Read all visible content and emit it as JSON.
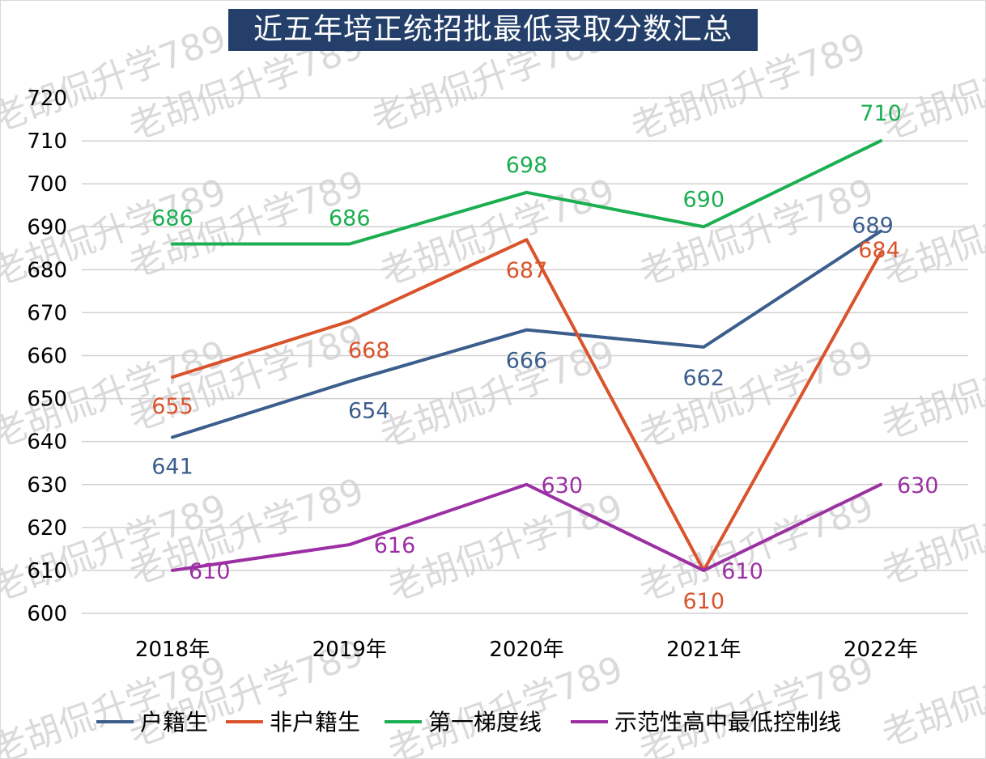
{
  "chart_data": {
    "type": "line",
    "title": "近五年培正统招批最低录取分数汇总",
    "categories": [
      "2018年",
      "2019年",
      "2020年",
      "2021年",
      "2022年"
    ],
    "ylim": [
      600,
      720
    ],
    "yticks": [
      "600",
      "610",
      "620",
      "630",
      "640",
      "650",
      "660",
      "670",
      "680",
      "690",
      "700",
      "710",
      "720"
    ],
    "grid": true,
    "legend_position": "bottom",
    "series": [
      {
        "name": "户籍生",
        "color": "#3B5E8C",
        "values": [
          641,
          654,
          666,
          662,
          689
        ]
      },
      {
        "name": "非户籍生",
        "color": "#D9542C",
        "values": [
          655,
          668,
          687,
          610,
          684
        ]
      },
      {
        "name": "第一梯度线",
        "color": "#1BAF52",
        "values": [
          686,
          686,
          698,
          690,
          710
        ]
      },
      {
        "name": "示范性高中最低控制线",
        "color": "#9C2FA3",
        "values": [
          610,
          616,
          630,
          610,
          630
        ]
      }
    ]
  },
  "watermark": "老胡侃升学789"
}
